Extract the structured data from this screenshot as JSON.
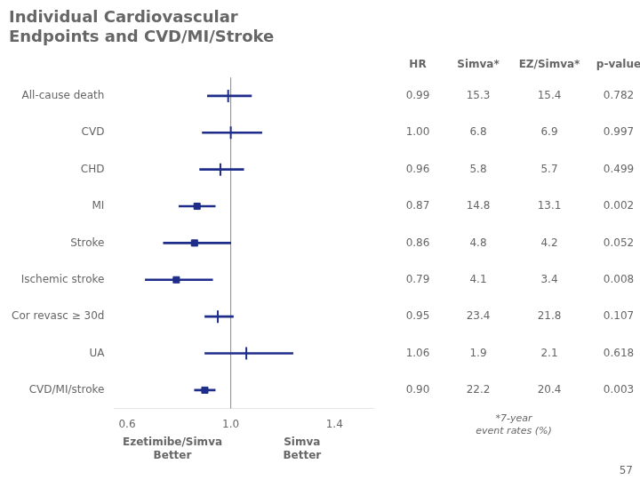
{
  "chart_data": {
    "type": "forest",
    "title": [
      "Individual Cardiovascular",
      "Endpoints and CVD/MI/Stroke"
    ],
    "orientation": "horizontal",
    "categories": [
      "All-cause death",
      "CVD",
      "CHD",
      "MI",
      "Stroke",
      "Ischemic stroke",
      "Cor revasc ≥ 30d",
      "UA",
      "CVD/MI/stroke"
    ],
    "series": [
      {
        "marker": "line",
        "values": [
          0.99,
          1.0,
          0.96,
          null,
          null,
          null,
          0.95,
          1.06,
          null
        ],
        "ci_low": [
          0.91,
          0.89,
          0.88,
          null,
          null,
          null,
          0.9,
          0.9,
          null
        ],
        "ci_high": [
          1.08,
          1.12,
          1.05,
          null,
          null,
          null,
          1.01,
          1.24,
          null
        ]
      },
      {
        "marker": "square",
        "values": [
          null,
          null,
          null,
          0.87,
          0.86,
          0.79,
          null,
          null,
          0.9
        ],
        "ci_low": [
          null,
          null,
          null,
          0.8,
          0.74,
          0.67,
          null,
          null,
          0.86
        ],
        "ci_high": [
          null,
          null,
          null,
          0.94,
          1.0,
          0.93,
          null,
          null,
          0.94
        ]
      }
    ],
    "color": "#1e2d8a",
    "xlim": [
      0.55,
      1.55
    ],
    "xticks": [
      0.6,
      {
        "value": 1,
        "label": "1.0"
      },
      1.4
    ],
    "reference_line": 1,
    "grid": false,
    "annotations": [
      "Ezetimibe/Simva\nBetter",
      "Simva\nBetter"
    ],
    "table": {
      "columns": [
        {
          "header": "HR",
          "values": [
            "0.99",
            "1.00",
            "0.96",
            "0.87",
            "0.86",
            "0.79",
            "0.95",
            "1.06",
            "0.90"
          ]
        },
        {
          "header": "Simva*",
          "values": [
            "15.3",
            "6.8",
            "5.8",
            "14.8",
            "4.8",
            "4.1",
            "23.4",
            "1.9",
            "22.2"
          ]
        },
        {
          "header": "EZ/Simva*",
          "values": [
            "15.4",
            "6.9",
            "5.7",
            "13.1",
            "4.2",
            "3.4",
            "21.8",
            "2.1",
            "20.4"
          ]
        },
        {
          "header": "p-value",
          "values": [
            "0.782",
            "0.997",
            "0.499",
            "0.002",
            "0.052",
            "0.008",
            "0.107",
            "0.618",
            "0.003"
          ]
        }
      ]
    },
    "footnote": "*7-year\nevent rates (%)",
    "slide_number": "57"
  }
}
